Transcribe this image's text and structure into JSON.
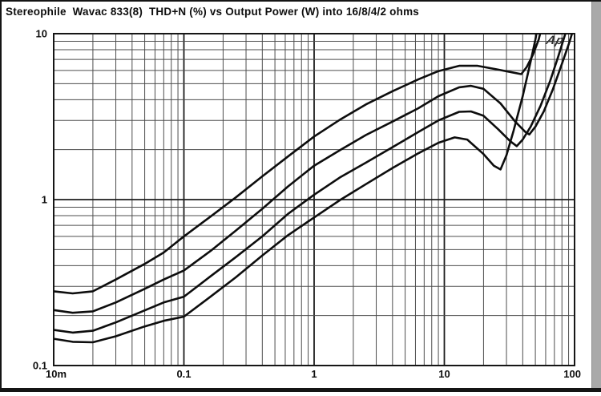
{
  "title": "Stereophile  Wavac 833(8)  THD+N (%) vs Output Power (W) into 16/8/4/2 ohms",
  "logo_label": "Ap",
  "chart_data": {
    "type": "line",
    "title": "Stereophile  Wavac 833(8)  THD+N (%) vs Output Power (W) into 16/8/4/2 ohms",
    "xlabel": "Output Power (W)",
    "ylabel": "THD+N (%)",
    "x_scale": "log",
    "y_scale": "log",
    "xlim": [
      0.01,
      100
    ],
    "ylim": [
      0.1,
      10
    ],
    "grid": true,
    "legend": "none (traces unlabeled; title indicates 16/8/4/2 ohm loads)",
    "x_ticks": [
      {
        "value": 0.01,
        "label": "10m"
      },
      {
        "value": 0.1,
        "label": "0.1"
      },
      {
        "value": 1,
        "label": "1"
      },
      {
        "value": 10,
        "label": "10"
      },
      {
        "value": 100,
        "label": "100"
      }
    ],
    "y_ticks": [
      {
        "value": 10,
        "label": "10"
      },
      {
        "value": 1,
        "label": "1"
      },
      {
        "value": 0.1,
        "label": "0.1"
      }
    ],
    "series": [
      {
        "name": "trace-1-top",
        "points": [
          [
            0.01,
            0.28
          ],
          [
            0.014,
            0.272
          ],
          [
            0.02,
            0.28
          ],
          [
            0.03,
            0.33
          ],
          [
            0.05,
            0.41
          ],
          [
            0.07,
            0.48
          ],
          [
            0.1,
            0.6
          ],
          [
            0.16,
            0.79
          ],
          [
            0.25,
            1.03
          ],
          [
            0.4,
            1.38
          ],
          [
            0.63,
            1.82
          ],
          [
            1,
            2.4
          ],
          [
            1.6,
            3.05
          ],
          [
            2.5,
            3.75
          ],
          [
            4,
            4.5
          ],
          [
            6.3,
            5.3
          ],
          [
            9,
            5.95
          ],
          [
            13,
            6.4
          ],
          [
            18,
            6.4
          ],
          [
            25,
            6.1
          ],
          [
            33,
            5.85
          ],
          [
            39,
            5.7
          ],
          [
            43,
            6.3
          ],
          [
            48,
            7.5
          ],
          [
            53,
            9.2
          ],
          [
            56,
            11
          ]
        ]
      },
      {
        "name": "trace-2",
        "points": [
          [
            0.01,
            0.216
          ],
          [
            0.014,
            0.208
          ],
          [
            0.02,
            0.212
          ],
          [
            0.03,
            0.24
          ],
          [
            0.05,
            0.29
          ],
          [
            0.07,
            0.33
          ],
          [
            0.1,
            0.374
          ],
          [
            0.16,
            0.49
          ],
          [
            0.25,
            0.65
          ],
          [
            0.4,
            0.88
          ],
          [
            0.63,
            1.2
          ],
          [
            1,
            1.6
          ],
          [
            1.6,
            2.0
          ],
          [
            2.5,
            2.45
          ],
          [
            4,
            2.95
          ],
          [
            6.3,
            3.55
          ],
          [
            9,
            4.2
          ],
          [
            13,
            4.75
          ],
          [
            16,
            4.85
          ],
          [
            20,
            4.65
          ],
          [
            27,
            3.8
          ],
          [
            35,
            2.95
          ],
          [
            42,
            2.55
          ],
          [
            45,
            2.47
          ],
          [
            50,
            2.75
          ],
          [
            58,
            3.4
          ],
          [
            68,
            4.6
          ],
          [
            80,
            6.6
          ],
          [
            90,
            8.6
          ],
          [
            97,
            10.4
          ],
          [
            98,
            11
          ]
        ]
      },
      {
        "name": "trace-3",
        "points": [
          [
            0.01,
            0.164
          ],
          [
            0.014,
            0.158
          ],
          [
            0.02,
            0.162
          ],
          [
            0.03,
            0.182
          ],
          [
            0.05,
            0.215
          ],
          [
            0.07,
            0.24
          ],
          [
            0.1,
            0.26
          ],
          [
            0.16,
            0.345
          ],
          [
            0.25,
            0.45
          ],
          [
            0.4,
            0.6
          ],
          [
            0.63,
            0.82
          ],
          [
            1,
            1.07
          ],
          [
            1.6,
            1.37
          ],
          [
            2.5,
            1.67
          ],
          [
            4,
            2.07
          ],
          [
            6.3,
            2.55
          ],
          [
            9,
            3.0
          ],
          [
            13,
            3.38
          ],
          [
            16,
            3.4
          ],
          [
            20,
            3.2
          ],
          [
            26,
            2.65
          ],
          [
            32,
            2.25
          ],
          [
            36,
            2.1
          ],
          [
            40,
            2.3
          ],
          [
            46,
            2.75
          ],
          [
            55,
            3.7
          ],
          [
            65,
            5.2
          ],
          [
            75,
            7.3
          ],
          [
            85,
            10.0
          ],
          [
            86,
            11
          ]
        ]
      },
      {
        "name": "trace-4-bottom",
        "points": [
          [
            0.01,
            0.145
          ],
          [
            0.014,
            0.139
          ],
          [
            0.02,
            0.138
          ],
          [
            0.03,
            0.15
          ],
          [
            0.05,
            0.172
          ],
          [
            0.07,
            0.186
          ],
          [
            0.1,
            0.197
          ],
          [
            0.16,
            0.26
          ],
          [
            0.25,
            0.34
          ],
          [
            0.4,
            0.46
          ],
          [
            0.63,
            0.61
          ],
          [
            1,
            0.78
          ],
          [
            1.6,
            1.0
          ],
          [
            2.5,
            1.24
          ],
          [
            4,
            1.55
          ],
          [
            6.3,
            1.9
          ],
          [
            9,
            2.2
          ],
          [
            12,
            2.37
          ],
          [
            15,
            2.3
          ],
          [
            20,
            1.88
          ],
          [
            24,
            1.6
          ],
          [
            27,
            1.52
          ],
          [
            30,
            1.85
          ],
          [
            34,
            2.6
          ],
          [
            40,
            4.2
          ],
          [
            46,
            6.8
          ],
          [
            50,
            9.2
          ],
          [
            52,
            11
          ]
        ]
      }
    ]
  }
}
